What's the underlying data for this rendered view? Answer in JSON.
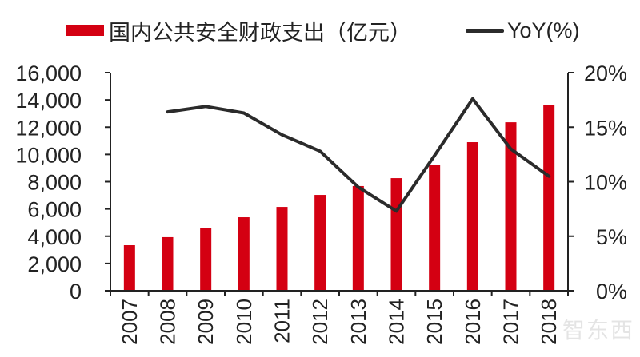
{
  "legend": {
    "bar_label": "国内公共安全财政支出（亿元）",
    "line_label": "YoY(%)"
  },
  "watermark": "智东西",
  "colors": {
    "bar": "#d40012",
    "line": "#2b2b2b",
    "axis": "#222222"
  },
  "chart_data": {
    "type": "bar+line",
    "title": "",
    "categories": [
      "2007",
      "2008",
      "2009",
      "2010",
      "2011",
      "2012",
      "2013",
      "2014",
      "2015",
      "2016",
      "2017",
      "2018"
    ],
    "series": [
      {
        "name": "国内公共安全财政支出（亿元）",
        "type": "bar",
        "axis": "left",
        "values": [
          3340,
          3930,
          4630,
          5390,
          6150,
          7030,
          7680,
          8260,
          9260,
          10900,
          12360,
          13650
        ]
      },
      {
        "name": "YoY(%)",
        "type": "line",
        "axis": "right",
        "values": [
          null,
          16.4,
          16.9,
          16.3,
          14.3,
          12.8,
          9.5,
          7.3,
          12.4,
          17.6,
          13.0,
          10.5
        ]
      }
    ],
    "left_axis": {
      "ylim": [
        0,
        16000
      ],
      "ticks": [
        "0",
        "2,000",
        "4,000",
        "6,000",
        "8,000",
        "10,000",
        "12,000",
        "14,000",
        "16,000"
      ]
    },
    "right_axis": {
      "ylim": [
        0,
        20
      ],
      "ticks": [
        "0%",
        "5%",
        "10%",
        "15%",
        "20%"
      ]
    },
    "xlabel": "",
    "ylabel": "",
    "grid": false,
    "legend_position": "top"
  }
}
